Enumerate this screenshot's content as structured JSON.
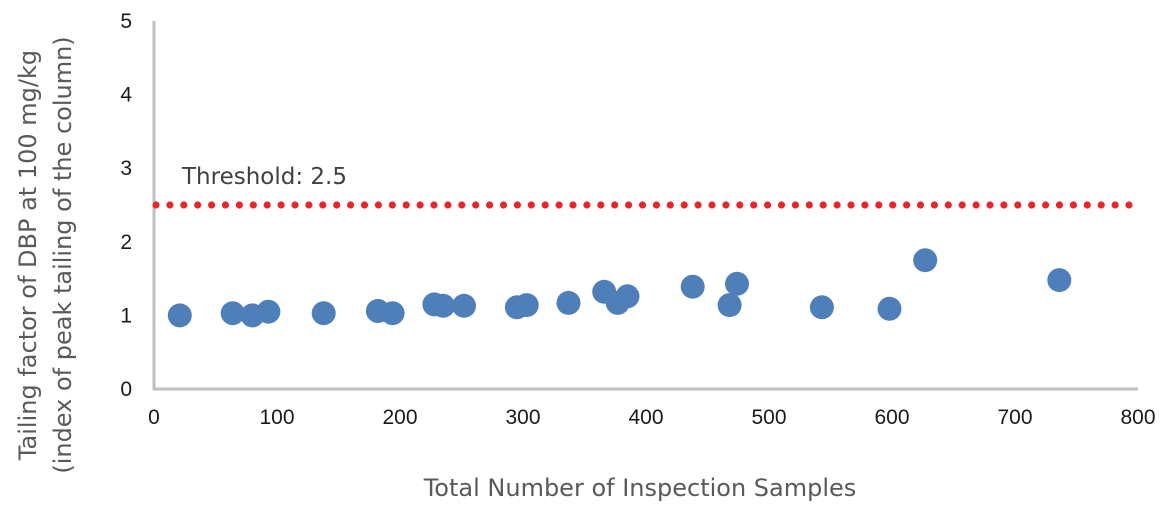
{
  "chart_data": {
    "type": "scatter",
    "title": "",
    "xlabel": "Total Number of Inspection Samples",
    "ylabel_lines": [
      "Tailing factor of DBP at 100 mg/kg",
      "(index of peak tailing of the column)"
    ],
    "ylabel": "Tailing factor of DBP at 100 mg/kg (index of peak tailing of the column)",
    "xlim": [
      0,
      800
    ],
    "ylim": [
      0,
      5
    ],
    "x_ticks": [
      0,
      100,
      200,
      300,
      400,
      500,
      600,
      700,
      800
    ],
    "y_ticks": [
      0,
      1,
      2,
      3,
      4,
      5
    ],
    "grid": false,
    "legend": null,
    "series": [
      {
        "name": "Tailing factor",
        "color": "#4E7FB9",
        "points": [
          [
            21,
            1.0
          ],
          [
            64,
            1.03
          ],
          [
            80,
            1.0
          ],
          [
            93,
            1.05
          ],
          [
            138,
            1.03
          ],
          [
            182,
            1.06
          ],
          [
            194,
            1.03
          ],
          [
            228,
            1.15
          ],
          [
            235,
            1.13
          ],
          [
            252,
            1.13
          ],
          [
            295,
            1.11
          ],
          [
            303,
            1.14
          ],
          [
            337,
            1.17
          ],
          [
            366,
            1.32
          ],
          [
            377,
            1.17
          ],
          [
            385,
            1.26
          ],
          [
            438,
            1.39
          ],
          [
            468,
            1.14
          ],
          [
            474,
            1.43
          ],
          [
            543,
            1.11
          ],
          [
            598,
            1.09
          ],
          [
            627,
            1.75
          ],
          [
            736,
            1.48
          ]
        ]
      }
    ],
    "threshold": {
      "value": 2.5,
      "label": "Threshold: 2.5",
      "color": "#E8262A",
      "style": "dotted"
    }
  },
  "colors": {
    "axis": "#BFBFBF",
    "tick_text": "#1a1a1a",
    "title_text": "#595959",
    "annotation_text": "#404040"
  }
}
